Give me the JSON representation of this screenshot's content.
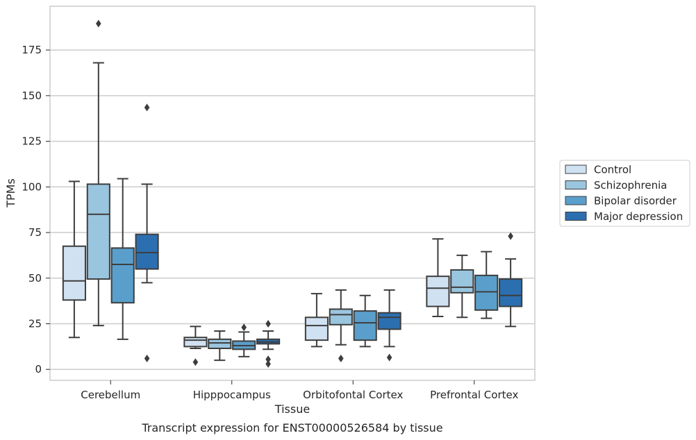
{
  "caption": "Transcript expression for ENST00000526584 by tissue",
  "chart_data": {
    "type": "box",
    "xlabel": "Tissue",
    "ylabel": "TPMs",
    "ylim": [
      -6,
      199
    ],
    "yticks": [
      0,
      25,
      50,
      75,
      100,
      125,
      150,
      175
    ],
    "grid": true,
    "legend_position": "right, outside plot",
    "categories": [
      "Cerebellum",
      "Hipppocampus",
      "Orbitofontal Cortex",
      "Prefrontal Cortex"
    ],
    "series": [
      {
        "name": "Control",
        "color": "#d0e1f1",
        "boxes": [
          {
            "whisker_low": 17.5,
            "q1": 38,
            "median": 48.5,
            "q3": 67.5,
            "whisker_high": 103,
            "outliers": []
          },
          {
            "whisker_low": 11.5,
            "q1": 12.5,
            "median": 16,
            "q3": 17.5,
            "whisker_high": 23.5,
            "outliers": [
              4
            ]
          },
          {
            "whisker_low": 12.5,
            "q1": 16,
            "median": 24,
            "q3": 28.5,
            "whisker_high": 41.5,
            "outliers": []
          },
          {
            "whisker_low": 29,
            "q1": 34.5,
            "median": 44.5,
            "q3": 51,
            "whisker_high": 71.5,
            "outliers": []
          }
        ]
      },
      {
        "name": "Schizophrenia",
        "color": "#9ac5de",
        "boxes": [
          {
            "whisker_low": 24,
            "q1": 49.5,
            "median": 85,
            "q3": 101.5,
            "whisker_high": 168,
            "outliers": [
              189.5
            ]
          },
          {
            "whisker_low": 5,
            "q1": 11.5,
            "median": 14.5,
            "q3": 16.5,
            "whisker_high": 21,
            "outliers": []
          },
          {
            "whisker_low": 13.5,
            "q1": 24.5,
            "median": 30,
            "q3": 33,
            "whisker_high": 43.5,
            "outliers": [
              6
            ]
          },
          {
            "whisker_low": 28.5,
            "q1": 42,
            "median": 45,
            "q3": 54.5,
            "whisker_high": 62.5,
            "outliers": []
          }
        ]
      },
      {
        "name": "Bipolar disorder",
        "color": "#5a9fcb",
        "boxes": [
          {
            "whisker_low": 16.5,
            "q1": 36.5,
            "median": 57.5,
            "q3": 66.5,
            "whisker_high": 104.5,
            "outliers": []
          },
          {
            "whisker_low": 7,
            "q1": 11,
            "median": 13,
            "q3": 15.5,
            "whisker_high": 20.5,
            "outliers": [
              23
            ]
          },
          {
            "whisker_low": 12.5,
            "q1": 16,
            "median": 25.5,
            "q3": 32,
            "whisker_high": 40.5,
            "outliers": []
          },
          {
            "whisker_low": 28,
            "q1": 32.5,
            "median": 42.5,
            "q3": 51.5,
            "whisker_high": 64.5,
            "outliers": []
          }
        ]
      },
      {
        "name": "Major depression",
        "color": "#2c6fb0",
        "boxes": [
          {
            "whisker_low": 47.5,
            "q1": 55,
            "median": 64,
            "q3": 74,
            "whisker_high": 101.5,
            "outliers": [
              143.5,
              6
            ]
          },
          {
            "whisker_low": 11,
            "q1": 14,
            "median": 15,
            "q3": 16.5,
            "whisker_high": 21,
            "outliers": [
              25,
              5.5,
              3
            ]
          },
          {
            "whisker_low": 12.5,
            "q1": 22,
            "median": 28.5,
            "q3": 31,
            "whisker_high": 43.5,
            "outliers": [
              6.5
            ]
          },
          {
            "whisker_low": 23.5,
            "q1": 34.5,
            "median": 40.5,
            "q3": 49.5,
            "whisker_high": 60.5,
            "outliers": [
              73
            ]
          }
        ]
      }
    ]
  }
}
